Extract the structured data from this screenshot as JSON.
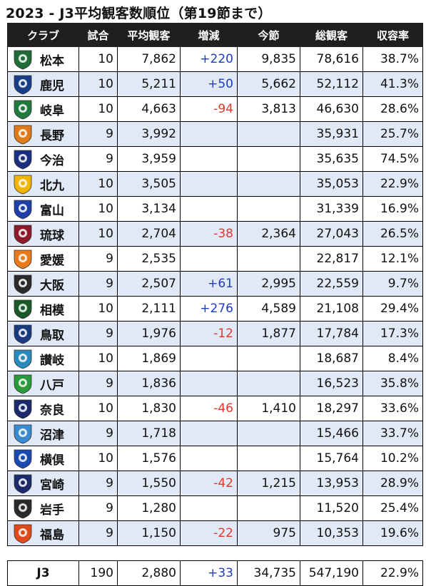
{
  "title": "2023 - J3平均観客数順位（第19節まで）",
  "colors": {
    "header_bg": "#1f1f1f",
    "stripe": "#e2e9f6",
    "increase": "#1e3cc4",
    "decrease": "#e0392b"
  },
  "chart_data": {
    "type": "table",
    "columns": [
      "クラブ",
      "試合",
      "平均観客",
      "増減",
      "今節",
      "総観客",
      "収容率"
    ],
    "rows": [
      {
        "club": "松本",
        "games": "10",
        "avg": "7,862",
        "diff": "+220",
        "sign": "pos",
        "current": "9,835",
        "total": "78,616",
        "rate": "38.7%",
        "logo_color": "#1f6b3a",
        "logo": "matsumoto-crest-icon"
      },
      {
        "club": "鹿児",
        "games": "10",
        "avg": "5,211",
        "diff": "+50",
        "sign": "pos",
        "current": "5,662",
        "total": "52,112",
        "rate": "41.3%",
        "logo_color": "#1a3d8a",
        "logo": "kagoshima-crest-icon"
      },
      {
        "club": "岐阜",
        "games": "10",
        "avg": "4,663",
        "diff": "-94",
        "sign": "neg",
        "current": "3,813",
        "total": "46,630",
        "rate": "28.6%",
        "logo_color": "#1f7a3d",
        "logo": "gifu-crest-icon"
      },
      {
        "club": "長野",
        "games": "9",
        "avg": "3,992",
        "diff": "",
        "sign": "",
        "current": "",
        "total": "35,931",
        "rate": "25.7%",
        "logo_color": "#e07a1a",
        "logo": "nagano-crest-icon"
      },
      {
        "club": "今治",
        "games": "9",
        "avg": "3,959",
        "diff": "",
        "sign": "",
        "current": "",
        "total": "35,635",
        "rate": "74.5%",
        "logo_color": "#1a2f80",
        "logo": "imabari-crest-icon"
      },
      {
        "club": "北九",
        "games": "10",
        "avg": "3,505",
        "diff": "",
        "sign": "",
        "current": "",
        "total": "35,053",
        "rate": "22.9%",
        "logo_color": "#f2b600",
        "logo": "kitakyushu-crest-icon"
      },
      {
        "club": "富山",
        "games": "10",
        "avg": "3,134",
        "diff": "",
        "sign": "",
        "current": "",
        "total": "31,339",
        "rate": "16.9%",
        "logo_color": "#1f3fa8",
        "logo": "toyama-crest-icon"
      },
      {
        "club": "琉球",
        "games": "10",
        "avg": "2,704",
        "diff": "-38",
        "sign": "neg",
        "current": "2,364",
        "total": "27,043",
        "rate": "26.5%",
        "logo_color": "#8a1a2a",
        "logo": "ryukyu-crest-icon"
      },
      {
        "club": "愛媛",
        "games": "9",
        "avg": "2,535",
        "diff": "",
        "sign": "",
        "current": "",
        "total": "22,817",
        "rate": "12.1%",
        "logo_color": "#e87a1a",
        "logo": "ehime-crest-icon"
      },
      {
        "club": "大阪",
        "games": "9",
        "avg": "2,507",
        "diff": "+61",
        "sign": "pos",
        "current": "2,995",
        "total": "22,559",
        "rate": "9.7%",
        "logo_color": "#2a2a2a",
        "logo": "osaka-crest-icon"
      },
      {
        "club": "相模",
        "games": "10",
        "avg": "2,111",
        "diff": "+276",
        "sign": "pos",
        "current": "4,589",
        "total": "21,108",
        "rate": "29.4%",
        "logo_color": "#1a5a2a",
        "logo": "sagamihara-crest-icon"
      },
      {
        "club": "鳥取",
        "games": "9",
        "avg": "1,976",
        "diff": "-12",
        "sign": "neg",
        "current": "1,877",
        "total": "17,784",
        "rate": "17.3%",
        "logo_color": "#1a3a80",
        "logo": "tottori-crest-icon"
      },
      {
        "club": "讃岐",
        "games": "10",
        "avg": "1,869",
        "diff": "",
        "sign": "",
        "current": "",
        "total": "18,687",
        "rate": "8.4%",
        "logo_color": "#2a8ac0",
        "logo": "sanuki-crest-icon"
      },
      {
        "club": "八戸",
        "games": "9",
        "avg": "1,836",
        "diff": "",
        "sign": "",
        "current": "",
        "total": "16,523",
        "rate": "35.8%",
        "logo_color": "#2a9a3a",
        "logo": "hachinohe-crest-icon"
      },
      {
        "club": "奈良",
        "games": "10",
        "avg": "1,830",
        "diff": "-46",
        "sign": "neg",
        "current": "1,410",
        "total": "18,297",
        "rate": "33.6%",
        "logo_color": "#1a2a6a",
        "logo": "nara-crest-icon"
      },
      {
        "club": "沼津",
        "games": "9",
        "avg": "1,718",
        "diff": "",
        "sign": "",
        "current": "",
        "total": "15,466",
        "rate": "33.7%",
        "logo_color": "#3a8ad0",
        "logo": "numazu-crest-icon"
      },
      {
        "club": "横倶",
        "games": "10",
        "avg": "1,576",
        "diff": "",
        "sign": "",
        "current": "",
        "total": "15,764",
        "rate": "10.2%",
        "logo_color": "#1a4ab0",
        "logo": "yscc-crest-icon"
      },
      {
        "club": "宮崎",
        "games": "9",
        "avg": "1,550",
        "diff": "-42",
        "sign": "neg",
        "current": "1,215",
        "total": "13,953",
        "rate": "28.9%",
        "logo_color": "#1a2a6a",
        "logo": "miyazaki-crest-icon"
      },
      {
        "club": "岩手",
        "games": "9",
        "avg": "1,280",
        "diff": "",
        "sign": "",
        "current": "",
        "total": "11,520",
        "rate": "25.4%",
        "logo_color": "#2a2a2a",
        "logo": "iwate-crest-icon"
      },
      {
        "club": "福島",
        "games": "9",
        "avg": "1,150",
        "diff": "-22",
        "sign": "neg",
        "current": "975",
        "total": "10,353",
        "rate": "19.6%",
        "logo_color": "#e04a1a",
        "logo": "fukushima-crest-icon"
      }
    ],
    "total": {
      "label": "J3",
      "games": "190",
      "avg": "2,880",
      "diff": "+33",
      "sign": "pos",
      "current": "34,735",
      "total": "547,190",
      "rate": "22.9%"
    }
  }
}
